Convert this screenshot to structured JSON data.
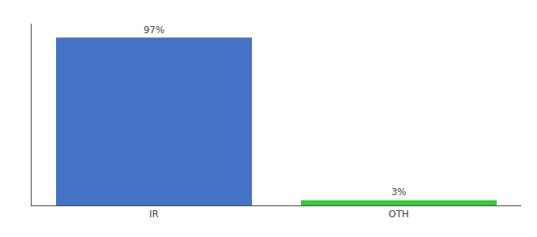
{
  "chart_data": {
    "type": "bar",
    "categories": [
      "IR",
      "OTH"
    ],
    "values": [
      97,
      3
    ],
    "value_labels": [
      "97%",
      "3%"
    ],
    "data_labels": true,
    "colors": [
      "#4472c4",
      "#33cc33"
    ],
    "ylim": [
      0,
      105
    ],
    "yticks": [],
    "grid": false,
    "tick_labels": "x"
  }
}
